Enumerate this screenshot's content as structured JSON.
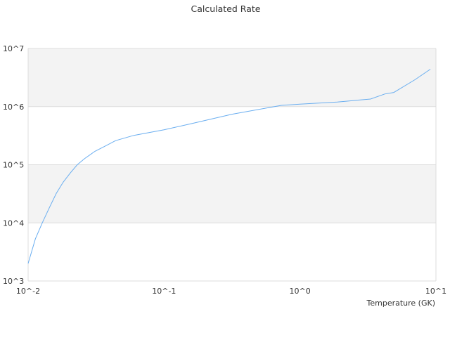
{
  "chart_data": {
    "type": "line",
    "title": "Calculated Rate",
    "xlabel": "Temperature (GK)",
    "ylabel": "",
    "xscale": "log",
    "yscale": "log",
    "xlim": [
      0.01,
      10
    ],
    "ylim": [
      1000,
      10000000
    ],
    "xticks": [
      "10^-2",
      "10^-1",
      "10^0",
      "10^1"
    ],
    "yticks": [
      "10^3",
      "10^4",
      "10^5",
      "10^6",
      "10^7"
    ],
    "grid": true,
    "alternating_bands": true,
    "band_color": "#f3f3f3",
    "line_color": "#6aaef0",
    "series": [
      {
        "x": [
          0.01,
          0.0113,
          0.0127,
          0.0143,
          0.0161,
          0.0181,
          0.0204,
          0.023,
          0.026,
          0.031,
          0.037,
          0.044,
          0.06,
          0.1,
          0.16,
          0.316,
          0.73,
          1.0,
          1.88,
          3.3,
          4.2,
          4.9,
          7.0,
          9.1
        ],
        "y": [
          2000,
          5300,
          10000,
          18000,
          32000,
          50000,
          72000,
          100000,
          127000,
          170000,
          210000,
          260000,
          320000,
          400000,
          510000,
          740000,
          1050000,
          1100000,
          1200000,
          1350000,
          1650000,
          1750000,
          2900000,
          4400000
        ]
      }
    ]
  }
}
